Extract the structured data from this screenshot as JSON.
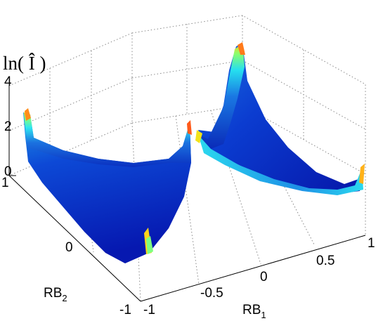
{
  "chart_data": {
    "type": "surface",
    "title": "",
    "xlabel": "RB",
    "xlabel_sub": "1",
    "ylabel": "RB",
    "ylabel_sub": "2",
    "zlabel": "ln( Î )",
    "xlim": [
      -1,
      1
    ],
    "ylim": [
      -1,
      1
    ],
    "zlim": [
      0,
      4
    ],
    "x_ticks": [
      "-1",
      "-0.5",
      "0",
      "0.5",
      "1"
    ],
    "y_ticks": [
      "-1",
      "0",
      "1"
    ],
    "z_ticks": [
      "0",
      "2",
      "4"
    ],
    "grid": true,
    "colormap": "jet",
    "surfaces": [
      {
        "region": "RB1 < 0",
        "edge_profile_rb2": [
          -1,
          -0.5,
          0,
          0.5,
          1
        ],
        "edge_profile_z": [
          2.3,
          1.0,
          0.6,
          1.0,
          2.3
        ],
        "min_z": 0.0
      },
      {
        "region": "RB1 > 0",
        "edge_profile_rb2": [
          -1,
          -0.5,
          0,
          0.5,
          1
        ],
        "edge_profile_z": [
          2.4,
          1.0,
          0.6,
          1.0,
          2.4
        ],
        "min_z": 0.0
      }
    ]
  }
}
